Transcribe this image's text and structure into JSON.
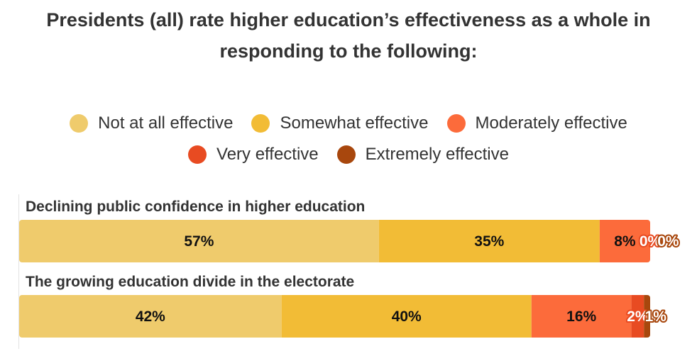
{
  "title": "Presidents (all) rate higher education’s effectiveness as a whole in responding to the following:",
  "chart_data": {
    "type": "bar",
    "orientation": "horizontal",
    "stacked": "percent",
    "title": "Presidents (all) rate higher education’s effectiveness as a whole in responding to the following:",
    "legend_position": "top-center",
    "categories": [
      "Declining public confidence in higher education",
      "The growing education divide in the electorate"
    ],
    "series": [
      {
        "name": "Not at all effective",
        "color": "#EFCB6C",
        "values": [
          57,
          42
        ],
        "labels": [
          "57%",
          "42%"
        ]
      },
      {
        "name": "Somewhat effective",
        "color": "#F2BC36",
        "values": [
          35,
          40
        ],
        "labels": [
          "35%",
          "40%"
        ]
      },
      {
        "name": "Moderately effective",
        "color": "#FC6B3B",
        "values": [
          8,
          16
        ],
        "labels": [
          "8%",
          "16%"
        ]
      },
      {
        "name": "Very effective",
        "color": "#E84B22",
        "values": [
          0,
          2
        ],
        "labels": [
          "0%",
          "2%"
        ]
      },
      {
        "name": "Extremely effective",
        "color": "#A8470D",
        "values": [
          0,
          1
        ],
        "labels": [
          "0%",
          "1%"
        ]
      }
    ]
  }
}
